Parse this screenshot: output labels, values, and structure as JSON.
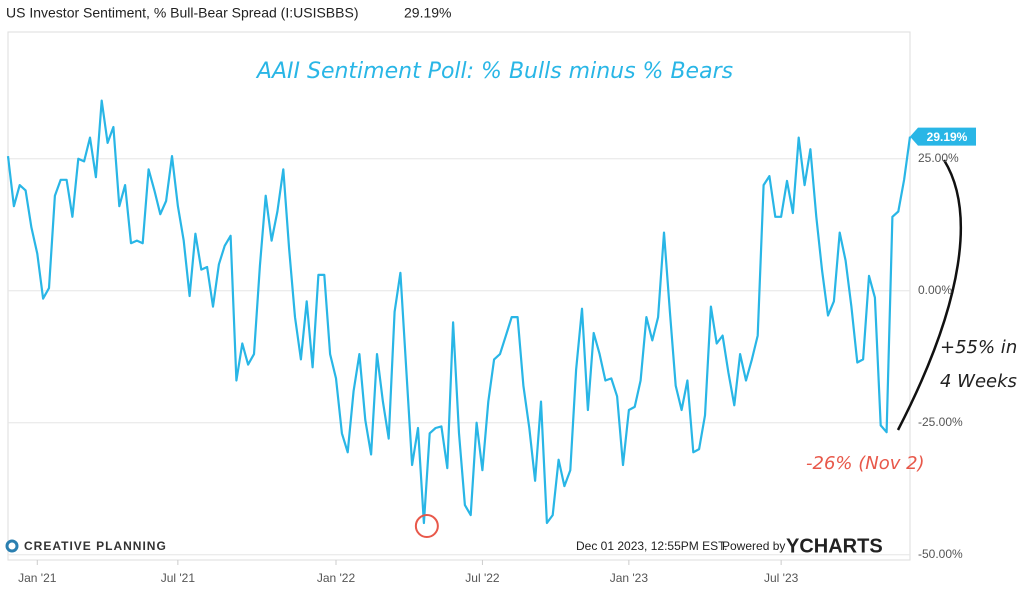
{
  "header": {
    "title": "US Investor Sentiment, % Bull-Bear Spread (I:USISBBS)",
    "current_label": "29.19%"
  },
  "chart_data": {
    "type": "line",
    "annotations": {
      "title": "AAII Sentiment Poll: % Bulls minus % Bears",
      "gain_line1": "+55% in",
      "gain_line2": "4 Weeks",
      "low": "-26% (Nov 2)"
    },
    "categories": [
      null,
      null,
      null,
      null,
      null,
      "Jan '21",
      null,
      null,
      null,
      null,
      null,
      null,
      null,
      null,
      null,
      null,
      null,
      null,
      null,
      null,
      null,
      null,
      null,
      null,
      null,
      null,
      null,
      null,
      null,
      "Jul '21",
      null,
      null,
      null,
      null,
      null,
      null,
      null,
      null,
      null,
      null,
      null,
      null,
      null,
      null,
      null,
      null,
      null,
      null,
      null,
      null,
      null,
      null,
      null,
      null,
      null,
      null,
      "Jan '22",
      null,
      null,
      null,
      null,
      null,
      null,
      null,
      null,
      null,
      null,
      null,
      null,
      null,
      null,
      null,
      null,
      null,
      null,
      null,
      null,
      null,
      null,
      null,
      null,
      "Jul '22",
      null,
      null,
      null,
      null,
      null,
      null,
      null,
      null,
      null,
      null,
      null,
      null,
      null,
      null,
      null,
      null,
      null,
      null,
      null,
      null,
      null,
      null,
      null,
      null,
      "Jan '23",
      null,
      null,
      null,
      null,
      null,
      null,
      null,
      null,
      null,
      null,
      null,
      null,
      null,
      null,
      null,
      null,
      null,
      null,
      null,
      null,
      null,
      null,
      null,
      null,
      null,
      "Jul '23",
      null,
      null,
      null,
      null,
      null,
      null,
      null,
      null,
      null,
      null,
      null,
      null,
      null,
      null,
      null,
      null,
      null,
      null,
      null,
      null,
      null,
      null
    ],
    "series": [
      {
        "name": "US Investor Sentiment, % Bull-Bear Spread",
        "color": "#29b6e6",
        "values": [
          25.5,
          16,
          20,
          19,
          12,
          7,
          -1.5,
          0.5,
          18,
          21,
          21,
          14,
          25,
          24.5,
          29,
          21.5,
          36,
          28,
          31,
          16,
          20,
          9,
          9.5,
          9,
          23,
          19,
          14.5,
          17,
          25.5,
          16,
          9.5,
          -1,
          10.8,
          4,
          4.5,
          -3,
          5,
          8.5,
          10.4,
          -17,
          -10,
          -14,
          -12,
          4.7,
          18,
          9.5,
          15,
          23,
          8,
          -5,
          -13,
          -2,
          -14.5,
          3,
          3,
          -12,
          -16.6,
          -27,
          -30.6,
          -19,
          -12,
          -24.5,
          -31,
          -12,
          -21,
          -28,
          -4,
          3.4,
          -15,
          -33,
          -26,
          -44,
          -27,
          -26,
          -25.7,
          -33.6,
          -6,
          -27,
          -40.6,
          -42.5,
          -25,
          -34,
          -21,
          -13,
          -12,
          -8.5,
          -5,
          -5,
          -18,
          -26,
          -36,
          -21,
          -44,
          -42.5,
          -32,
          -37,
          -34,
          -15,
          -3.4,
          -22.6,
          -8,
          -12,
          -17,
          -16.6,
          -20,
          -33,
          -22.6,
          -22,
          -17,
          -5,
          -9.4,
          -5,
          11,
          -4,
          -18,
          -22.6,
          -17,
          -30.6,
          -30,
          -23.6,
          -3,
          -10,
          -8.5,
          -15.5,
          -21.7,
          -12,
          -17,
          -13,
          -8.5,
          20,
          21.7,
          14,
          14,
          20.8,
          14.7,
          29,
          20,
          26.8,
          14,
          3.8,
          -4.7,
          -2,
          11,
          5.7,
          -3,
          -13.6,
          -13,
          2.8,
          -1.3,
          -25.5,
          -26.8,
          14,
          15,
          21,
          29.19
        ]
      }
    ],
    "ylim": [
      -51,
      49
    ],
    "yticks": [
      {
        "value": -50,
        "label": "-50.00%"
      },
      {
        "value": -25,
        "label": "-25.00%"
      },
      {
        "value": 0,
        "label": "0.00%"
      },
      {
        "value": 25,
        "label": "25.00%"
      }
    ],
    "grid": true
  },
  "footer": {
    "brand": "CREATIVE PLANNING",
    "timestamp": "Dec 01 2023, 12:55PM EST.",
    "powered": "Powered by",
    "provider": "YCHARTS"
  }
}
